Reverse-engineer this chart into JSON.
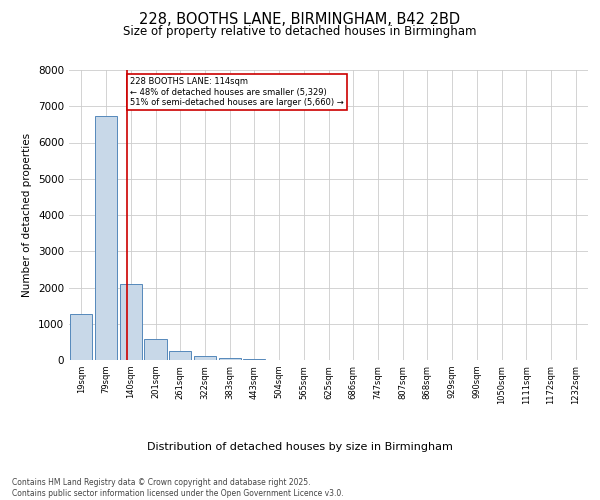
{
  "title1": "228, BOOTHS LANE, BIRMINGHAM, B42 2BD",
  "title2": "Size of property relative to detached houses in Birmingham",
  "xlabel": "Distribution of detached houses by size in Birmingham",
  "ylabel": "Number of detached properties",
  "footer": "Contains HM Land Registry data © Crown copyright and database right 2025.\nContains public sector information licensed under the Open Government Licence v3.0.",
  "bar_labels": [
    "19sqm",
    "79sqm",
    "140sqm",
    "201sqm",
    "261sqm",
    "322sqm",
    "383sqm",
    "443sqm",
    "504sqm",
    "565sqm",
    "625sqm",
    "686sqm",
    "747sqm",
    "807sqm",
    "868sqm",
    "929sqm",
    "990sqm",
    "1050sqm",
    "1111sqm",
    "1172sqm",
    "1232sqm"
  ],
  "bar_values": [
    1270,
    6720,
    2100,
    590,
    240,
    110,
    45,
    20,
    10,
    5,
    3,
    2,
    2,
    1,
    1,
    1,
    1,
    0,
    0,
    0,
    0
  ],
  "bar_color": "#c8d8e8",
  "bar_edge_color": "#5588bb",
  "vline_x": 1.85,
  "vline_color": "#cc0000",
  "annotation_text": "228 BOOTHS LANE: 114sqm\n← 48% of detached houses are smaller (5,329)\n51% of semi-detached houses are larger (5,660) →",
  "annotation_box_color": "#cc0000",
  "ylim": [
    0,
    8000
  ],
  "yticks": [
    0,
    1000,
    2000,
    3000,
    4000,
    5000,
    6000,
    7000,
    8000
  ],
  "background_color": "#ffffff",
  "grid_color": "#cccccc"
}
